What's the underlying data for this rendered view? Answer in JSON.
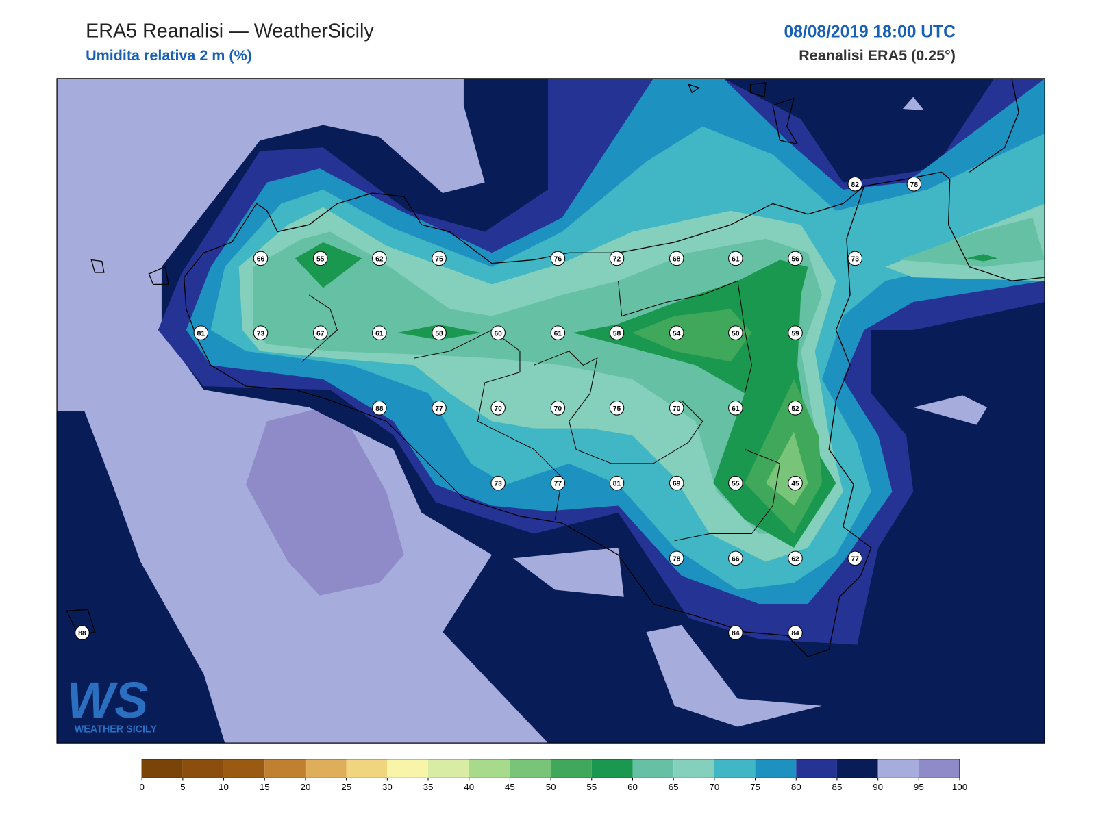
{
  "header": {
    "title": "ERA5 Reanalisi — WeatherSicily",
    "subtitle": "Umidita relativa 2 m (%)",
    "datetime": "08/08/2019 18:00 UTC",
    "source": "Reanalisi ERA5 (0.25°)"
  },
  "stations": [
    66,
    55,
    62,
    75,
    76,
    72,
    68,
    61,
    56,
    73,
    82,
    78,
    81,
    73,
    67,
    61,
    58,
    60,
    61,
    58,
    54,
    50,
    59,
    88,
    77,
    70,
    70,
    75,
    70,
    61,
    52,
    73,
    77,
    81,
    69,
    55,
    45,
    78,
    66,
    62,
    77,
    88,
    84,
    84
  ],
  "colorbar": {
    "ticks": [
      0,
      5,
      10,
      15,
      20,
      25,
      30,
      35,
      40,
      45,
      50,
      55,
      60,
      65,
      70,
      75,
      80,
      85,
      90,
      95,
      100
    ],
    "colors": [
      "#7a4408",
      "#8c4e0c",
      "#9a5a12",
      "#c08030",
      "#deae5a",
      "#f0d47e",
      "#f8f4a8",
      "#d8eca4",
      "#a8da8c",
      "#78c478",
      "#3fa85a",
      "#1a9850",
      "#66c1a4",
      "#84d0bc",
      "#41b6c4",
      "#1d91c0",
      "#253494",
      "#081d58",
      "#a6addc",
      "#8e8bc8"
    ]
  },
  "logo": {
    "mark": "WS",
    "text": "WEATHER SICILY"
  }
}
